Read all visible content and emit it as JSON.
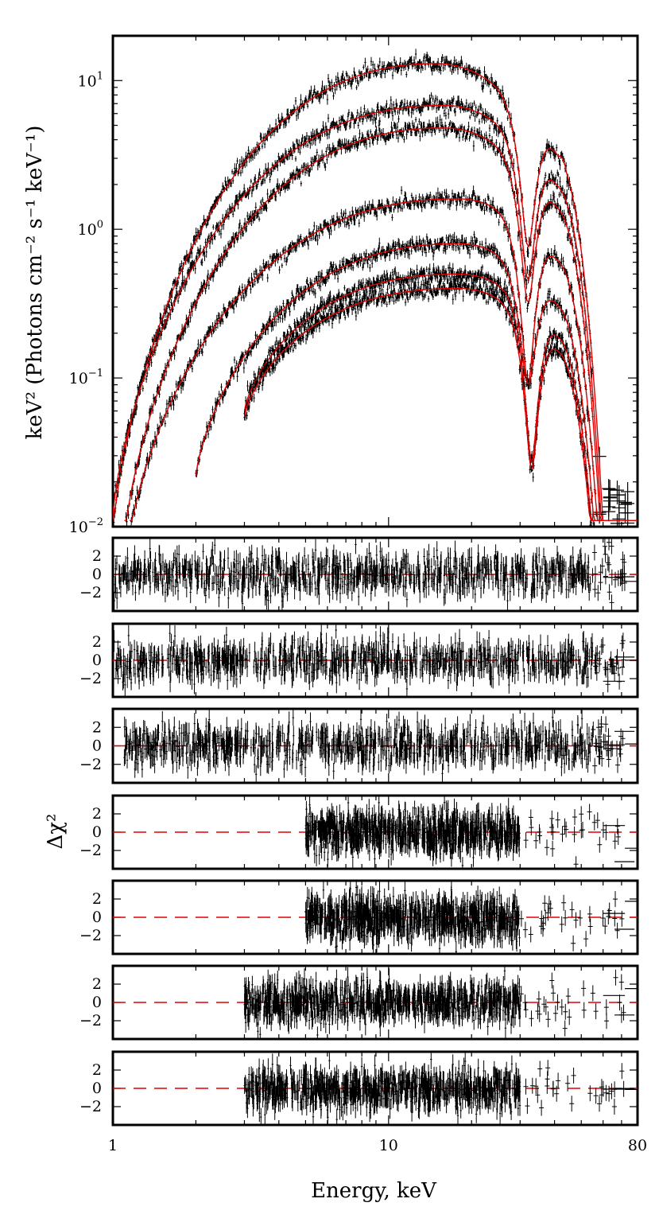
{
  "chart_data": {
    "type": "scatter",
    "description_layout": "top spectrum panel with 7 residual panels",
    "xlabel": "Energy, keV",
    "xscale": "log",
    "xlim": [
      1,
      80
    ],
    "x_tick_labels": [
      "1",
      "10",
      "80"
    ],
    "spectrum_panel": {
      "ylabel": "keV² (Photons cm⁻² s⁻¹ keV⁻¹)",
      "yscale": "log",
      "ylim": [
        0.01,
        20
      ],
      "y_tick_labels": [
        {
          "base": "10",
          "exp": "−2",
          "value": 0.01
        },
        {
          "base": "10",
          "exp": "−1",
          "value": 0.1
        },
        {
          "base": "10",
          "exp": "0",
          "value": 1
        },
        {
          "base": "10",
          "exp": "1",
          "value": 10
        }
      ],
      "model_color": "#e00000",
      "data_color": "#000000",
      "series": [
        {
          "name": "spectrum-1",
          "peak_energy": 15,
          "peak_value": 13,
          "low_value": 0.009,
          "elow": 1.0,
          "cyclotron_dip_energy": 32,
          "dip_depth": 0.13,
          "harmonic_energy": 42,
          "harmonic_value": 3.1,
          "ehigh": 55
        },
        {
          "name": "spectrum-2",
          "peak_energy": 16,
          "peak_value": 6.8,
          "low_value": 0.012,
          "elow": 1.0,
          "cyclotron_dip_energy": 32,
          "dip_depth": 0.13,
          "harmonic_energy": 42,
          "harmonic_value": 1.75,
          "ehigh": 55
        },
        {
          "name": "spectrum-3",
          "peak_energy": 16,
          "peak_value": 4.8,
          "low_value": 0.008,
          "elow": 1.1,
          "cyclotron_dip_energy": 32,
          "dip_depth": 0.13,
          "harmonic_energy": 42,
          "harmonic_value": 1.25,
          "ehigh": 55
        },
        {
          "name": "spectrum-4",
          "peak_energy": 18,
          "peak_value": 1.6,
          "low_value": 0.008,
          "elow": 1.15,
          "cyclotron_dip_energy": 32,
          "dip_depth": 0.09,
          "harmonic_energy": 42,
          "harmonic_value": 0.42,
          "ehigh": 60
        },
        {
          "name": "spectrum-5",
          "peak_energy": 18,
          "peak_value": 0.8,
          "low_value": 0.022,
          "elow": 2.0,
          "cyclotron_dip_energy": 32,
          "dip_depth": 0.18,
          "harmonic_energy": 42,
          "harmonic_value": 0.25,
          "ehigh": 60
        },
        {
          "name": "spectrum-6",
          "peak_energy": 18,
          "peak_value": 0.5,
          "low_value": 0.06,
          "elow": 3.0,
          "cyclotron_dip_energy": 33,
          "dip_depth": 0.09,
          "harmonic_energy": 42,
          "harmonic_value": 0.15,
          "ehigh": 60
        },
        {
          "name": "spectrum-7",
          "peak_energy": 18,
          "peak_value": 0.4,
          "low_value": 0.055,
          "elow": 3.0,
          "cyclotron_dip_energy": 33,
          "dip_depth": 0.1,
          "harmonic_energy": 42,
          "harmonic_value": 0.14,
          "ehigh": 60
        }
      ]
    },
    "residual_panels": {
      "ylabel": "Δχ²",
      "ylim": [
        -4,
        4
      ],
      "y_tick_labels": [
        "2",
        "0",
        "−2"
      ],
      "y_tick_values": [
        2,
        0,
        -2
      ],
      "zero_line_color": "#e00000",
      "panels": [
        {
          "name": "residuals-1",
          "dense_start": 1.0,
          "dense_end": 55
        },
        {
          "name": "residuals-2",
          "dense_start": 1.0,
          "dense_end": 55
        },
        {
          "name": "residuals-3",
          "dense_start": 1.1,
          "dense_end": 55
        },
        {
          "name": "residuals-4",
          "dense_start": 5.0,
          "dense_end": 30
        },
        {
          "name": "residuals-5",
          "dense_start": 5.0,
          "dense_end": 30
        },
        {
          "name": "residuals-6",
          "dense_start": 3.0,
          "dense_end": 30
        },
        {
          "name": "residuals-7",
          "dense_start": 3.0,
          "dense_end": 30
        }
      ]
    }
  }
}
